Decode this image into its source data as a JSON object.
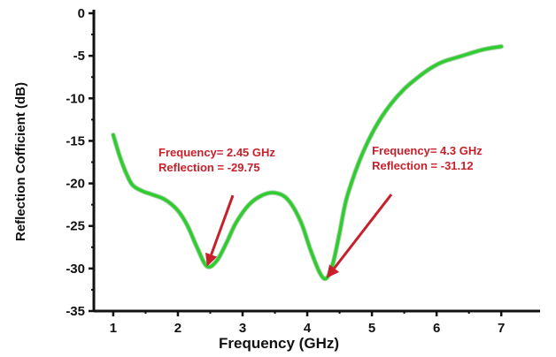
{
  "chart_data": {
    "type": "line",
    "title": "",
    "xlabel": "Frequency (GHz)",
    "ylabel": "Reflection Cofficient (dB)",
    "xlim": [
      0.7,
      7.6
    ],
    "ylim": [
      -35,
      0
    ],
    "xticks": [
      1,
      2,
      3,
      4,
      5,
      6,
      7
    ],
    "yticks": [
      0,
      -5,
      -10,
      -15,
      -20,
      -25,
      -30,
      -35
    ],
    "grid": false,
    "legend": "none",
    "series": [
      {
        "color": "#2fcc2f",
        "x": [
          1.0,
          1.1,
          1.2,
          1.3,
          1.45,
          1.6,
          1.8,
          2.0,
          2.15,
          2.3,
          2.45,
          2.6,
          2.75,
          2.9,
          3.1,
          3.3,
          3.5,
          3.7,
          3.9,
          4.05,
          4.2,
          4.3,
          4.4,
          4.5,
          4.6,
          4.75,
          4.9,
          5.1,
          5.3,
          5.5,
          5.7,
          5.9,
          6.1,
          6.4,
          6.7,
          7.0
        ],
        "y": [
          -14.3,
          -16.8,
          -18.8,
          -20.2,
          -20.9,
          -21.3,
          -21.9,
          -23.2,
          -25.0,
          -27.6,
          -29.75,
          -29.1,
          -27.0,
          -24.6,
          -22.5,
          -21.4,
          -21.1,
          -21.9,
          -24.5,
          -27.8,
          -30.6,
          -31.12,
          -29.3,
          -25.8,
          -22.0,
          -18.5,
          -15.7,
          -12.8,
          -10.6,
          -8.9,
          -7.6,
          -6.5,
          -5.7,
          -5.0,
          -4.3,
          -3.9
        ]
      }
    ],
    "annotations": [
      {
        "line1": "Frequency= 2.45 GHz",
        "line2": "Reflection = -29.75",
        "x": 2.45,
        "y": -29.75,
        "text_x": 1.7,
        "text_y": -16.8,
        "tail_x": 2.85,
        "tail_y": -21.4
      },
      {
        "line1": "Frequency= 4.3 GHz",
        "line2": "Reflection = -31.12",
        "x": 4.3,
        "y": -31.12,
        "text_x": 5.0,
        "text_y": -16.6,
        "tail_x": 5.3,
        "tail_y": -21.3
      }
    ]
  },
  "colors": {
    "curve": "#2fcc2f",
    "annotation": "#c8202a",
    "axis": "#111111"
  }
}
